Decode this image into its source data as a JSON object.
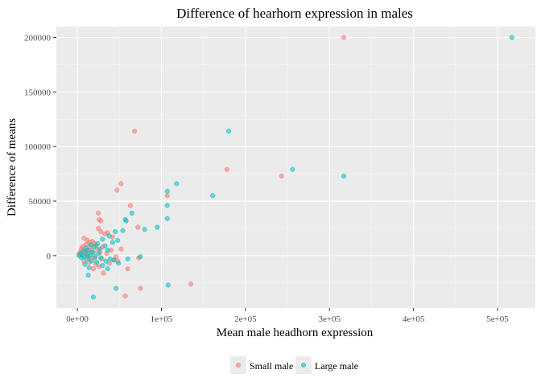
{
  "chart_data": {
    "type": "scatter",
    "title": "Difference of hearhorn expression in males",
    "xlabel": "Mean male headhorn expression",
    "ylabel": "Difference of means",
    "xlim": [
      -25000,
      545000
    ],
    "ylim": [
      -48000,
      210000
    ],
    "x_ticks": [
      0,
      100000,
      200000,
      300000,
      400000,
      500000
    ],
    "x_tick_labels": [
      "0e+00",
      "1e+05",
      "2e+05",
      "3e+05",
      "4e+05",
      "5e+05"
    ],
    "y_ticks": [
      0,
      50000,
      100000,
      150000,
      200000
    ],
    "y_tick_labels": [
      "0",
      "50000",
      "100000",
      "150000",
      "200000"
    ],
    "grid": true,
    "legend_position": "bottom",
    "series": [
      {
        "name": "Small male",
        "color": "#F8766D",
        "points": [
          [
            317000,
            200000
          ],
          [
            68000,
            114000
          ],
          [
            178000,
            79000
          ],
          [
            243000,
            73000
          ],
          [
            52000,
            66000
          ],
          [
            107000,
            55000
          ],
          [
            47000,
            60000
          ],
          [
            63000,
            46000
          ],
          [
            25000,
            39000
          ],
          [
            26000,
            33000
          ],
          [
            28000,
            32000
          ],
          [
            72000,
            26000
          ],
          [
            25000,
            25000
          ],
          [
            28000,
            22000
          ],
          [
            36000,
            21000
          ],
          [
            33000,
            20000
          ],
          [
            42000,
            17000
          ],
          [
            8000,
            16000
          ],
          [
            12000,
            14000
          ],
          [
            14000,
            12000
          ],
          [
            18000,
            13000
          ],
          [
            20000,
            11000
          ],
          [
            10000,
            10000
          ],
          [
            22000,
            9000
          ],
          [
            6000,
            8000
          ],
          [
            15000,
            8000
          ],
          [
            30000,
            8000
          ],
          [
            5000,
            6000
          ],
          [
            11000,
            5000
          ],
          [
            17000,
            5000
          ],
          [
            24000,
            6000
          ],
          [
            40000,
            5000
          ],
          [
            52000,
            6000
          ],
          [
            3000,
            3000
          ],
          [
            9000,
            3000
          ],
          [
            13000,
            2000
          ],
          [
            19000,
            3000
          ],
          [
            27000,
            3000
          ],
          [
            35000,
            2000
          ],
          [
            2000,
            1000
          ],
          [
            6000,
            0
          ],
          [
            12000,
            -1000
          ],
          [
            16000,
            -2000
          ],
          [
            21000,
            -2000
          ],
          [
            29000,
            -3000
          ],
          [
            44000,
            -4000
          ],
          [
            48000,
            -5000
          ],
          [
            8000,
            -5000
          ],
          [
            14000,
            -6000
          ],
          [
            22000,
            -8000
          ],
          [
            26000,
            -10000
          ],
          [
            19000,
            -12000
          ],
          [
            31000,
            -16000
          ],
          [
            60000,
            -12000
          ],
          [
            135000,
            -26000
          ],
          [
            75000,
            -30000
          ],
          [
            57000,
            -37000
          ],
          [
            73000,
            -2000
          ],
          [
            46000,
            -1000
          ],
          [
            38000,
            -7000
          ]
        ]
      },
      {
        "name": "Large male",
        "color": "#00BFC4",
        "points": [
          [
            517000,
            200000
          ],
          [
            180000,
            114000
          ],
          [
            256000,
            79000
          ],
          [
            317000,
            73000
          ],
          [
            118000,
            66000
          ],
          [
            107000,
            59000
          ],
          [
            161000,
            55000
          ],
          [
            107000,
            46000
          ],
          [
            65000,
            39000
          ],
          [
            107000,
            34000
          ],
          [
            57000,
            33000
          ],
          [
            58000,
            32000
          ],
          [
            95000,
            26000
          ],
          [
            80000,
            24000
          ],
          [
            54000,
            23000
          ],
          [
            45000,
            22000
          ],
          [
            38000,
            18000
          ],
          [
            30000,
            15000
          ],
          [
            48000,
            14000
          ],
          [
            42000,
            12000
          ],
          [
            24000,
            11000
          ],
          [
            16000,
            10000
          ],
          [
            33000,
            9000
          ],
          [
            20000,
            8000
          ],
          [
            10000,
            7000
          ],
          [
            27000,
            6000
          ],
          [
            13000,
            5000
          ],
          [
            36000,
            5000
          ],
          [
            7000,
            4000
          ],
          [
            18000,
            3000
          ],
          [
            25000,
            2000
          ],
          [
            4000,
            2000
          ],
          [
            11000,
            1000
          ],
          [
            15000,
            0
          ],
          [
            2000,
            0
          ],
          [
            8000,
            -1000
          ],
          [
            21000,
            -1000
          ],
          [
            28000,
            -2000
          ],
          [
            39000,
            -3000
          ],
          [
            5000,
            -2000
          ],
          [
            12000,
            -3000
          ],
          [
            17000,
            -5000
          ],
          [
            23000,
            -6000
          ],
          [
            34000,
            -5000
          ],
          [
            43000,
            -4000
          ],
          [
            49000,
            -7000
          ],
          [
            9000,
            -8000
          ],
          [
            14000,
            -11000
          ],
          [
            36000,
            -12000
          ],
          [
            13000,
            -18000
          ],
          [
            46000,
            -30000
          ],
          [
            108000,
            -27000
          ],
          [
            19000,
            -38000
          ],
          [
            75000,
            -1000
          ],
          [
            60000,
            -3000
          ],
          [
            30000,
            -9000
          ]
        ]
      }
    ]
  }
}
